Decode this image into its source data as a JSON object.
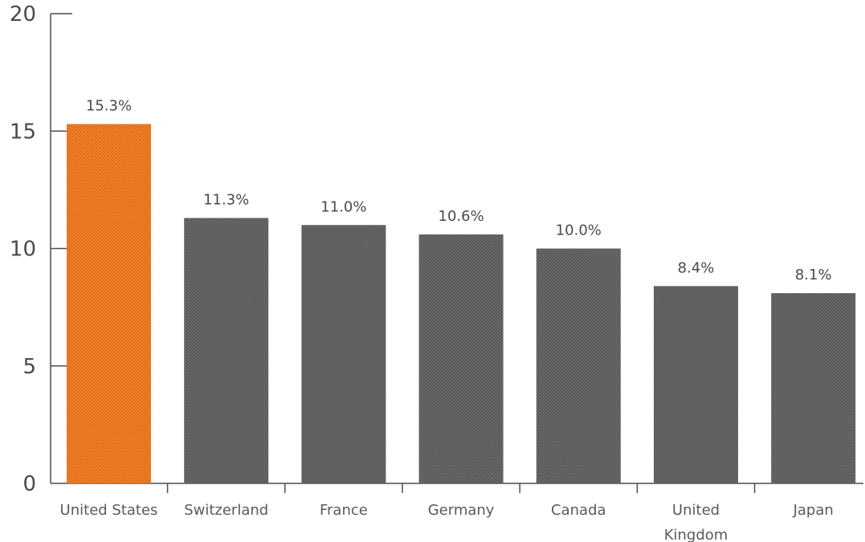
{
  "chart_data": {
    "type": "bar",
    "title": "",
    "xlabel": "",
    "ylabel": "",
    "ylim": [
      0,
      20
    ],
    "yticks": [
      0,
      5,
      10,
      15,
      20
    ],
    "grid": false,
    "categories": [
      [
        "United States"
      ],
      [
        "Switzerland"
      ],
      [
        "France"
      ],
      [
        "Germany"
      ],
      [
        "Canada"
      ],
      [
        "United",
        "Kingdom"
      ],
      [
        "Japan"
      ]
    ],
    "values": [
      15.3,
      11.3,
      11.0,
      10.6,
      10.0,
      8.4,
      8.1
    ],
    "data_labels": [
      "15.3%",
      "11.3%",
      "11.0%",
      "10.6%",
      "10.0%",
      "8.4%",
      "8.1%"
    ],
    "highlight_index": 0,
    "colors": {
      "highlight": "#e8731e",
      "bar": "#5f5f62",
      "axis": "#4d4d4d"
    }
  }
}
